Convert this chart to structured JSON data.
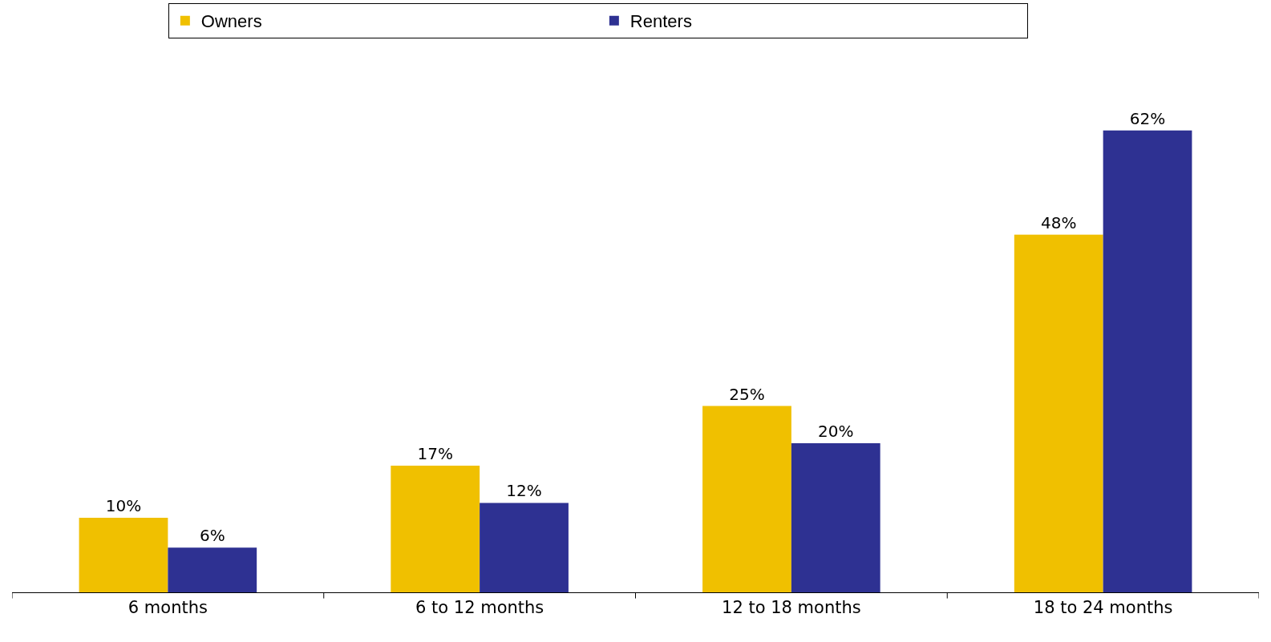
{
  "chart_data": {
    "type": "bar",
    "categories": [
      "6 months",
      "6 to 12 months",
      "12 to 18 months",
      "18 to 24 months"
    ],
    "series": [
      {
        "name": "Owners",
        "color": "#f0c000",
        "values": [
          10,
          17,
          25,
          48
        ],
        "value_labels": [
          "10%",
          "17%",
          "25%",
          "48%"
        ]
      },
      {
        "name": "Renters",
        "color": "#2e3192",
        "values": [
          6,
          12,
          20,
          62
        ],
        "value_labels": [
          "6%",
          "12%",
          "20%",
          "62%"
        ]
      }
    ],
    "legend": "top",
    "tick_labels": "x"
  }
}
